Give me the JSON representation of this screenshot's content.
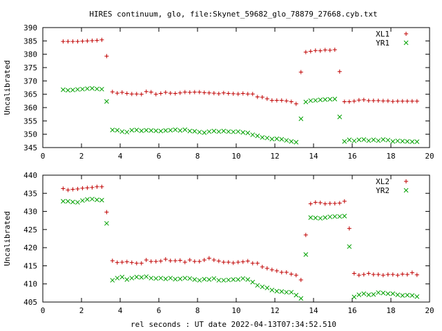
{
  "title": "HIRES continuum, glo, file:Skynet_59682_glo_78879_27668.cyb.txt",
  "xlabel": "rel seconds : UT date 2022-04-13T07:34:52.510",
  "colors": {
    "red": "#c00000",
    "green": "#00a000",
    "axis": "#000000"
  },
  "chart_data": [
    {
      "type": "scatter",
      "title": "",
      "xlabel": "",
      "ylabel": "Uncalibrated",
      "xlim": [
        0,
        20
      ],
      "ylim": [
        345,
        390
      ],
      "xticks": [
        0,
        2,
        4,
        6,
        8,
        10,
        12,
        14,
        16,
        18,
        20
      ],
      "yticks": [
        345,
        350,
        355,
        360,
        365,
        370,
        375,
        380,
        385,
        390
      ],
      "legend_position": "top-right",
      "series": [
        {
          "name": "XL1",
          "marker": "plus",
          "color": "#c00000",
          "x": [
            1.05,
            1.3,
            1.55,
            1.8,
            2.05,
            2.3,
            2.55,
            2.8,
            3.05,
            3.3,
            3.6,
            3.85,
            4.1,
            4.35,
            4.6,
            4.85,
            5.1,
            5.35,
            5.6,
            5.85,
            6.1,
            6.35,
            6.6,
            6.85,
            7.1,
            7.35,
            7.6,
            7.85,
            8.1,
            8.35,
            8.6,
            8.85,
            9.1,
            9.35,
            9.6,
            9.85,
            10.1,
            10.35,
            10.6,
            10.85,
            11.1,
            11.35,
            11.6,
            11.85,
            12.1,
            12.35,
            12.6,
            12.85,
            13.1,
            13.35,
            13.6,
            13.85,
            14.1,
            14.35,
            14.6,
            14.85,
            15.1,
            15.35,
            15.6,
            15.85,
            16.1,
            16.35,
            16.6,
            16.85,
            17.1,
            17.35,
            17.6,
            17.85,
            18.1,
            18.35,
            18.6,
            18.85,
            19.1,
            19.35
          ],
          "y": [
            384.8,
            384.8,
            384.8,
            384.8,
            384.9,
            385.0,
            385.1,
            385.2,
            385.4,
            379.3,
            365.9,
            365.4,
            365.7,
            365.3,
            365.1,
            365.1,
            365.0,
            366.0,
            365.8,
            365.0,
            365.3,
            365.7,
            365.4,
            365.3,
            365.5,
            365.8,
            365.7,
            365.8,
            365.8,
            365.6,
            365.5,
            365.4,
            365.2,
            365.5,
            365.3,
            365.2,
            365.1,
            365.3,
            365.1,
            365.1,
            364.0,
            363.9,
            363.3,
            362.7,
            362.7,
            362.7,
            362.5,
            362.2,
            361.4,
            373.3,
            380.8,
            381.1,
            381.4,
            381.3,
            381.6,
            381.5,
            381.7,
            373.5,
            362.2,
            362.2,
            362.4,
            362.8,
            362.9,
            362.6,
            362.6,
            362.6,
            362.5,
            362.5,
            362.3,
            362.4,
            362.4,
            362.4,
            362.4,
            362.4
          ]
        },
        {
          "name": "YR1",
          "marker": "cross",
          "color": "#00a000",
          "x": [
            1.05,
            1.3,
            1.55,
            1.8,
            2.05,
            2.3,
            2.55,
            2.8,
            3.05,
            3.3,
            3.6,
            3.85,
            4.1,
            4.35,
            4.6,
            4.85,
            5.1,
            5.35,
            5.6,
            5.85,
            6.1,
            6.35,
            6.6,
            6.85,
            7.1,
            7.35,
            7.6,
            7.85,
            8.1,
            8.35,
            8.6,
            8.85,
            9.1,
            9.35,
            9.6,
            9.85,
            10.1,
            10.35,
            10.6,
            10.85,
            11.1,
            11.35,
            11.6,
            11.85,
            12.1,
            12.35,
            12.6,
            12.85,
            13.1,
            13.35,
            13.6,
            13.85,
            14.1,
            14.35,
            14.6,
            14.85,
            15.1,
            15.35,
            15.6,
            15.85,
            16.1,
            16.35,
            16.6,
            16.85,
            17.1,
            17.35,
            17.6,
            17.85,
            18.1,
            18.35,
            18.6,
            18.85,
            19.1,
            19.35
          ],
          "y": [
            366.7,
            366.5,
            366.6,
            366.8,
            366.9,
            367.1,
            367.2,
            367.0,
            366.9,
            362.3,
            351.6,
            351.5,
            351.0,
            350.8,
            351.5,
            351.6,
            351.3,
            351.5,
            351.4,
            351.3,
            351.2,
            351.4,
            351.5,
            351.7,
            351.4,
            351.7,
            351.2,
            351.1,
            350.8,
            350.6,
            351.0,
            351.2,
            351.0,
            351.2,
            351.0,
            350.9,
            351.0,
            350.7,
            350.5,
            349.8,
            349.4,
            348.8,
            348.6,
            348.2,
            348.3,
            348.1,
            347.7,
            347.3,
            347.0,
            355.8,
            362.1,
            362.6,
            362.7,
            362.9,
            363.0,
            363.1,
            363.2,
            356.5,
            347.3,
            347.9,
            347.5,
            347.9,
            348.0,
            347.6,
            347.9,
            347.6,
            348.0,
            347.8,
            347.3,
            347.5,
            347.4,
            347.3,
            347.2,
            347.2
          ]
        }
      ]
    },
    {
      "type": "scatter",
      "title": "",
      "xlabel": "rel seconds : UT date 2022-04-13T07:34:52.510",
      "ylabel": "Uncalibrated",
      "xlim": [
        0,
        20
      ],
      "ylim": [
        405,
        440
      ],
      "xticks": [
        0,
        2,
        4,
        6,
        8,
        10,
        12,
        14,
        16,
        18,
        20
      ],
      "yticks": [
        405,
        410,
        415,
        420,
        425,
        430,
        435,
        440
      ],
      "legend_position": "top-right",
      "series": [
        {
          "name": "XL2",
          "marker": "plus",
          "color": "#c00000",
          "x": [
            1.05,
            1.3,
            1.55,
            1.8,
            2.05,
            2.3,
            2.55,
            2.8,
            3.05,
            3.3,
            3.6,
            3.85,
            4.1,
            4.35,
            4.6,
            4.85,
            5.1,
            5.35,
            5.6,
            5.85,
            6.1,
            6.35,
            6.6,
            6.85,
            7.1,
            7.35,
            7.6,
            7.85,
            8.1,
            8.35,
            8.6,
            8.85,
            9.1,
            9.35,
            9.6,
            9.85,
            10.1,
            10.35,
            10.6,
            10.85,
            11.1,
            11.35,
            11.6,
            11.85,
            12.1,
            12.35,
            12.6,
            12.85,
            13.1,
            13.35,
            13.6,
            13.85,
            14.1,
            14.35,
            14.6,
            14.85,
            15.1,
            15.35,
            15.6,
            15.85,
            16.1,
            16.35,
            16.6,
            16.85,
            17.1,
            17.35,
            17.6,
            17.85,
            18.1,
            18.35,
            18.6,
            18.85,
            19.1,
            19.35
          ],
          "y": [
            436.3,
            435.9,
            436.1,
            436.2,
            436.4,
            436.5,
            436.6,
            436.8,
            436.8,
            429.8,
            416.4,
            415.9,
            416.0,
            416.1,
            415.9,
            415.7,
            415.7,
            416.6,
            416.2,
            416.2,
            416.3,
            416.8,
            416.4,
            416.4,
            416.5,
            416.0,
            416.6,
            416.2,
            416.2,
            416.6,
            417.1,
            416.6,
            416.3,
            416.0,
            416.0,
            415.8,
            416.0,
            416.1,
            416.3,
            415.7,
            415.7,
            414.7,
            414.3,
            413.9,
            413.6,
            413.2,
            413.2,
            412.7,
            412.4,
            411.1,
            423.5,
            432.1,
            432.5,
            432.4,
            432.1,
            432.2,
            432.2,
            432.3,
            432.8,
            425.3,
            412.9,
            412.4,
            412.6,
            412.9,
            412.6,
            412.6,
            412.4,
            412.6,
            412.6,
            412.4,
            412.7,
            412.6,
            413.1,
            412.5
          ]
        },
        {
          "name": "YR2",
          "marker": "cross",
          "color": "#00a000",
          "x": [
            1.05,
            1.3,
            1.55,
            1.8,
            2.05,
            2.3,
            2.55,
            2.8,
            3.05,
            3.3,
            3.6,
            3.85,
            4.1,
            4.35,
            4.6,
            4.85,
            5.1,
            5.35,
            5.6,
            5.85,
            6.1,
            6.35,
            6.6,
            6.85,
            7.1,
            7.35,
            7.6,
            7.85,
            8.1,
            8.35,
            8.6,
            8.85,
            9.1,
            9.35,
            9.6,
            9.85,
            10.1,
            10.35,
            10.6,
            10.85,
            11.1,
            11.35,
            11.6,
            11.85,
            12.1,
            12.35,
            12.6,
            12.85,
            13.1,
            13.35,
            13.6,
            13.85,
            14.1,
            14.35,
            14.6,
            14.85,
            15.1,
            15.35,
            15.6,
            15.85,
            16.1,
            16.35,
            16.6,
            16.85,
            17.1,
            17.35,
            17.6,
            17.85,
            18.1,
            18.35,
            18.6,
            18.85,
            19.1,
            19.35
          ],
          "y": [
            432.8,
            432.8,
            432.6,
            432.5,
            433.0,
            433.3,
            433.4,
            433.2,
            433.1,
            426.7,
            411.0,
            411.6,
            411.9,
            411.2,
            411.6,
            411.9,
            411.8,
            412.0,
            411.6,
            411.5,
            411.6,
            411.4,
            411.6,
            411.3,
            411.4,
            411.6,
            411.5,
            411.2,
            411.0,
            411.3,
            411.2,
            411.5,
            411.0,
            411.0,
            411.1,
            411.2,
            411.2,
            411.5,
            411.2,
            410.5,
            409.6,
            409.2,
            408.9,
            408.3,
            408.0,
            407.9,
            407.7,
            407.7,
            406.9,
            406.0,
            418.1,
            428.3,
            428.2,
            428.1,
            428.3,
            428.5,
            428.6,
            428.6,
            428.7,
            420.3,
            406.4,
            407.0,
            407.3,
            407.0,
            407.1,
            407.6,
            407.5,
            407.3,
            407.3,
            407.0,
            406.8,
            406.9,
            406.8,
            406.5
          ]
        }
      ]
    }
  ]
}
